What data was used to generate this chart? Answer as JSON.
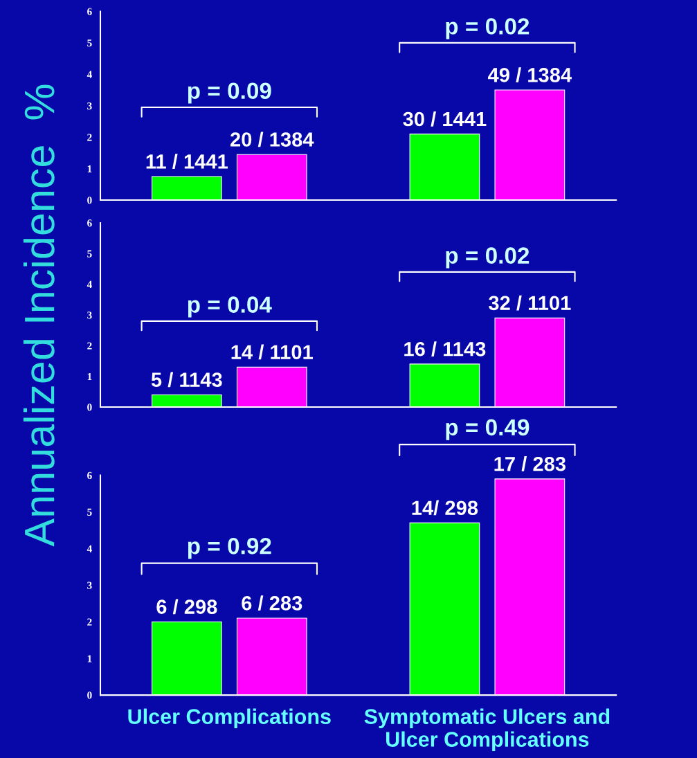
{
  "chart_data": [
    {
      "type": "bar",
      "categories": [
        null,
        null
      ],
      "ylim": [
        0,
        6
      ],
      "yticks": [
        0,
        1,
        2,
        3,
        4,
        5,
        6
      ],
      "tick_labels": "y",
      "series": [
        {
          "color": "#00ff00",
          "values": [
            0.75,
            2.1
          ]
        },
        {
          "color": "#ff00ff",
          "values": [
            1.45,
            3.5
          ]
        }
      ],
      "annotations": [
        "p = 0.09",
        "p = 0.02",
        {
          "text": "11 / 1441",
          "y": 0.75
        },
        {
          "text": "30 / 1441",
          "y": 2.1
        },
        {
          "text": "20 / 1384",
          "y": 1.45
        },
        {
          "text": "49 / 1384",
          "y": 3.5
        }
      ]
    },
    {
      "type": "bar",
      "categories": [
        null,
        null
      ],
      "ylim": [
        0,
        6
      ],
      "yticks": [
        0,
        1,
        2,
        3,
        4,
        5,
        6
      ],
      "tick_labels": "y",
      "ylabel": "Annualized Incidence  %",
      "series": [
        {
          "color": "#00ff00",
          "values": [
            0.4,
            1.4
          ]
        },
        {
          "color": "#ff00ff",
          "values": [
            1.3,
            2.9
          ]
        }
      ],
      "annotations": [
        "p = 0.04",
        "p = 0.02",
        {
          "text": "5 / 1143",
          "y": 0.4
        },
        {
          "text": "16 / 1143",
          "y": 1.4
        },
        {
          "text": "14 / 1101",
          "y": 1.3
        },
        {
          "text": "32 / 1101",
          "y": 2.9
        }
      ]
    },
    {
      "type": "bar",
      "categories": [
        "Ulcer Complications",
        "Symptomatic Ulcers and\nUlcer Complications"
      ],
      "ylim": [
        0,
        6
      ],
      "yticks": [
        0,
        1,
        2,
        3,
        4,
        5,
        6
      ],
      "series": [
        {
          "color": "#00ff00",
          "values": [
            2.0,
            4.7
          ]
        },
        {
          "color": "#ff00ff",
          "values": [
            2.1,
            5.9
          ]
        }
      ],
      "annotations": [
        "p = 0.92",
        "p = 0.49",
        {
          "text": "6 / 298",
          "y": 2.0
        },
        {
          "text": "14/ 298",
          "y": 4.7
        },
        {
          "text": "6 / 283",
          "y": 2.1
        },
        {
          "text": "17 / 283",
          "y": 5.9
        }
      ]
    }
  ]
}
